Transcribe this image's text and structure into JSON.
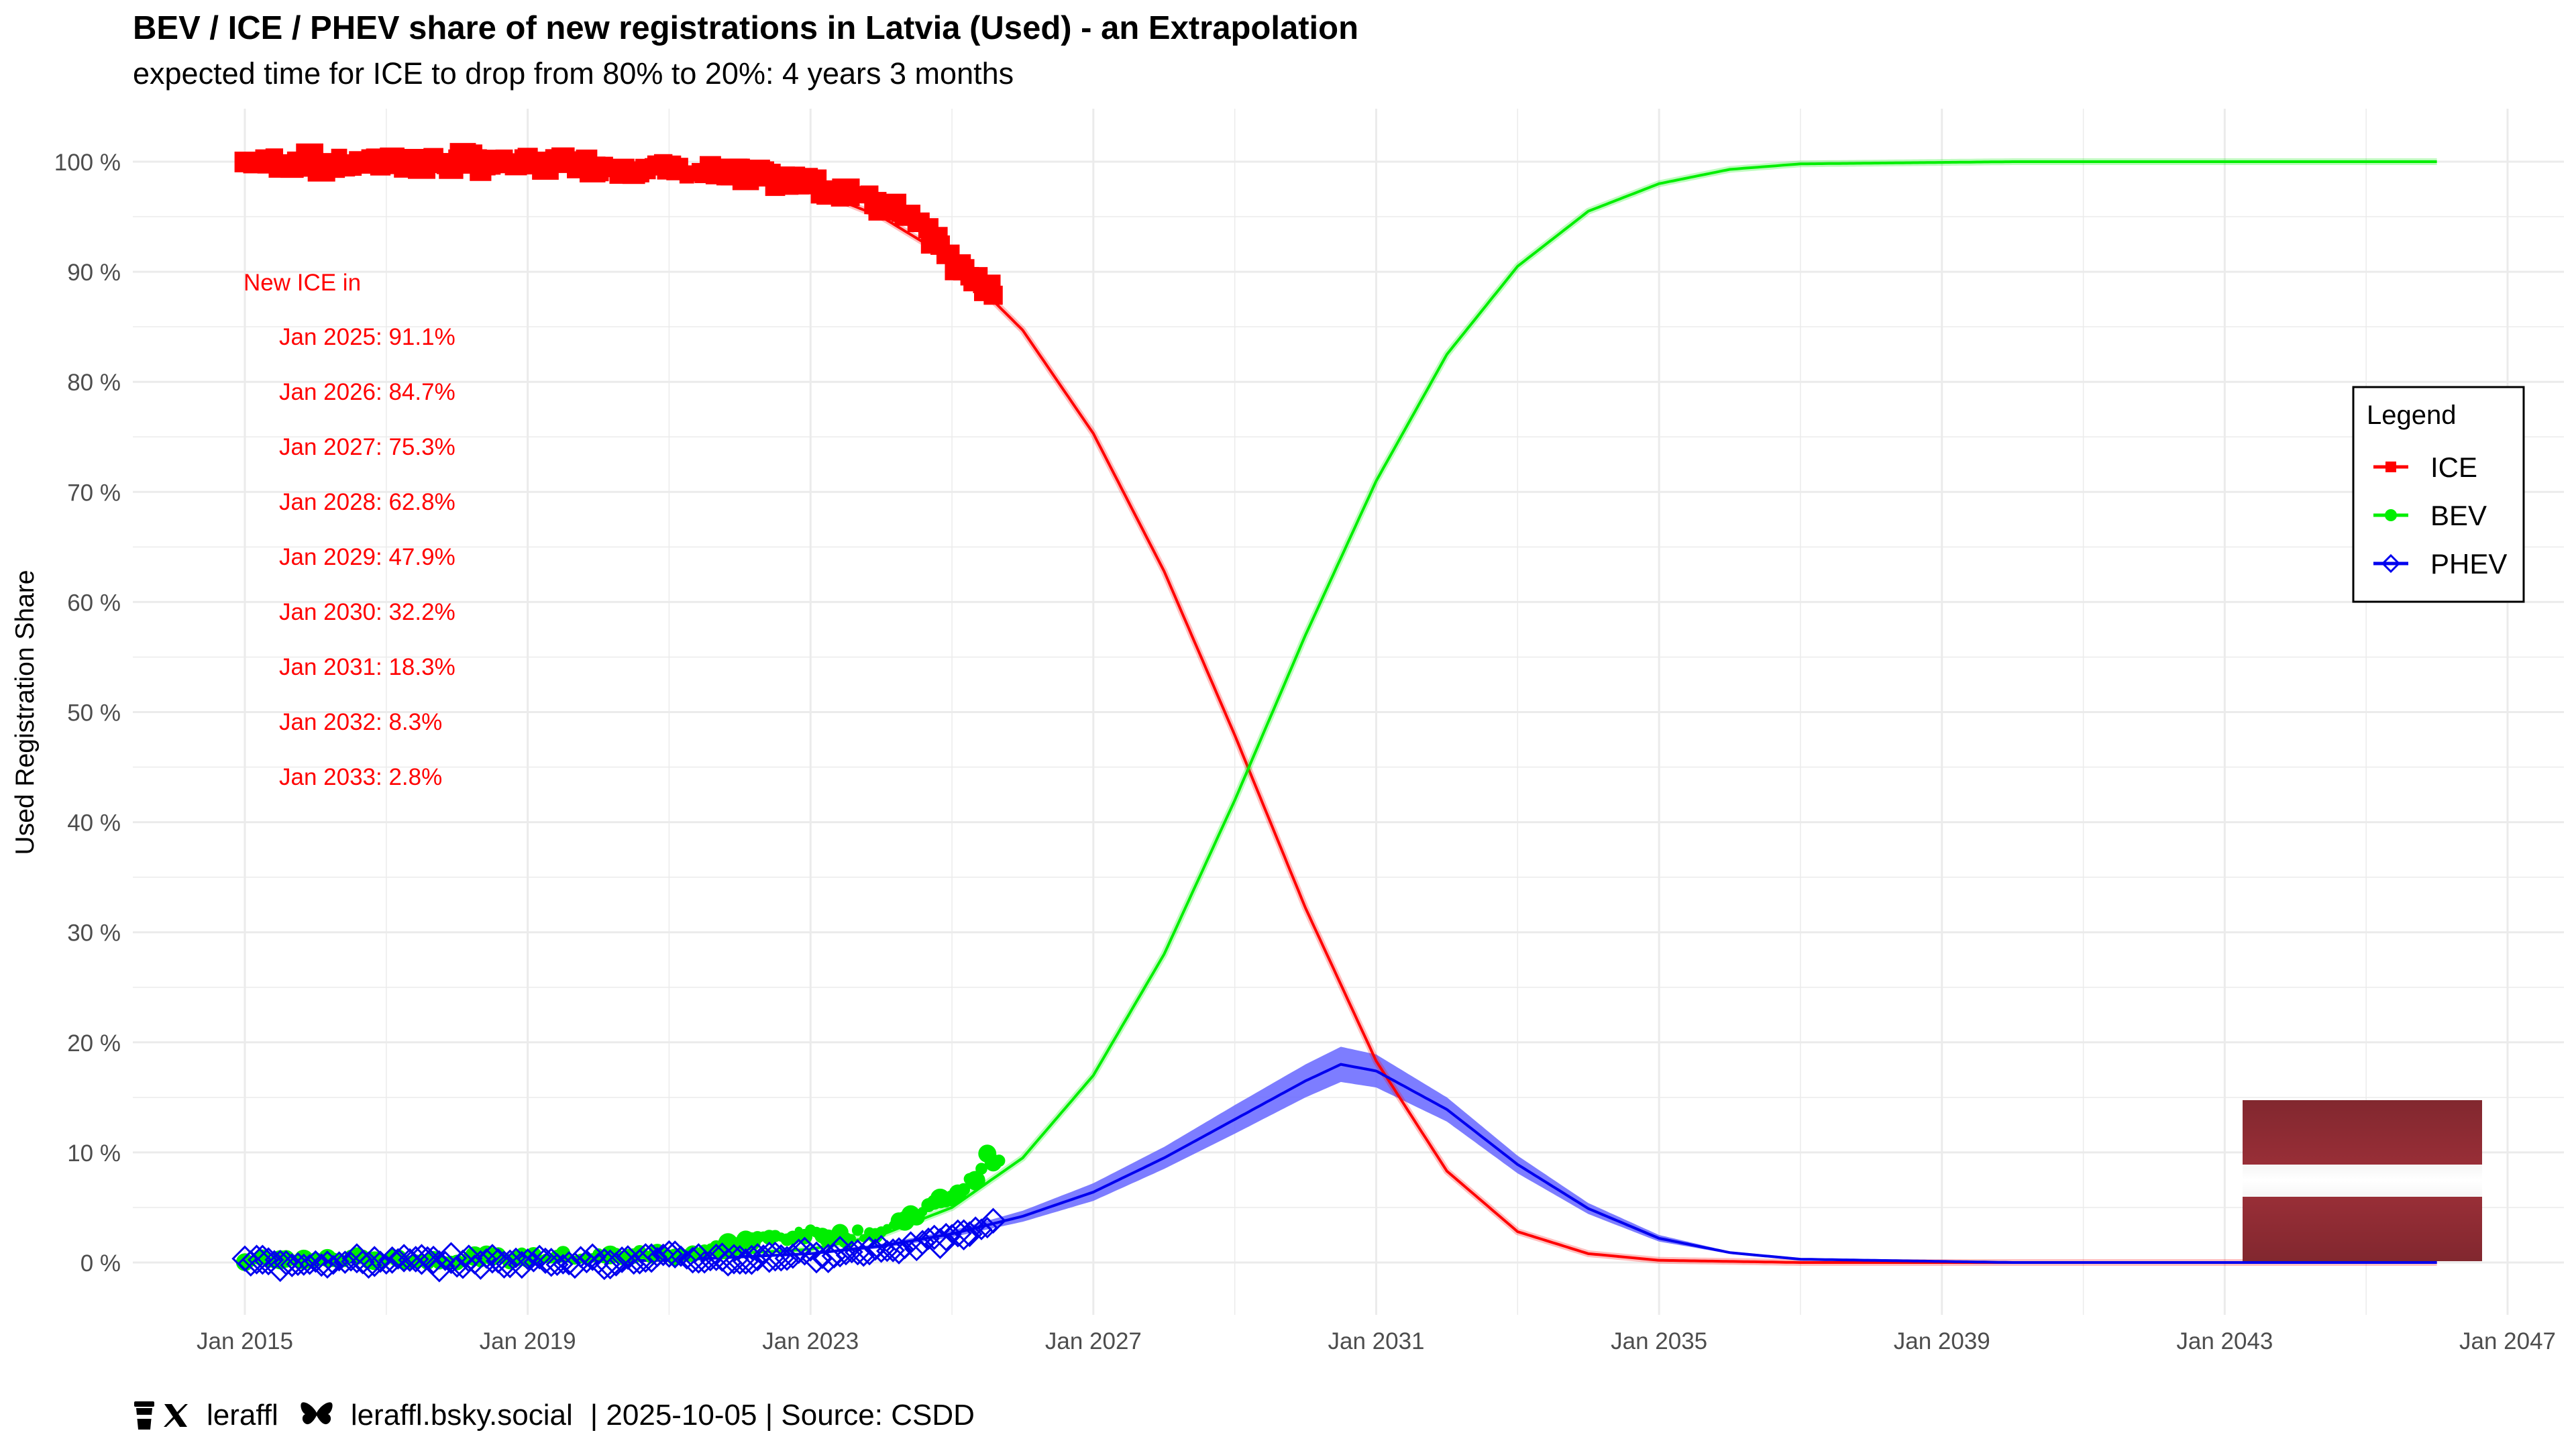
{
  "chart_data": {
    "type": "line",
    "title": "BEV / ICE / PHEV share of new registrations in Latvia (Used) - an Extrapolation",
    "subtitle": "expected time for ICE to drop from 80% to 20%: 4 years 3 months",
    "xlabel": "",
    "ylabel": "Used Registration Share",
    "x_ticks": [
      "Jan 2015",
      "Jan 2019",
      "Jan 2023",
      "Jan 2027",
      "Jan 2031",
      "Jan 2035",
      "Jan 2039",
      "Jan 2043",
      "Jan 2047"
    ],
    "y_ticks": [
      "0 %",
      "10 %",
      "20 %",
      "30 %",
      "40 %",
      "50 %",
      "60 %",
      "70 %",
      "80 %",
      "90 %",
      "100 %"
    ],
    "xlim": [
      2014.5,
      2047.2
    ],
    "ylim": [
      -5,
      105
    ],
    "grid": true,
    "legend": {
      "title": "Legend",
      "position": "right",
      "entries": [
        "ICE",
        "BEV",
        "PHEV"
      ]
    },
    "colors": {
      "ICE": "#ff0000",
      "BEV": "#00ee00",
      "PHEV": "#0000ee",
      "PHEV_band": "#6666ff",
      "grid": "#ebebeb",
      "axis_text": "#4d4d4d"
    },
    "series": [
      {
        "name": "ICE",
        "kind": "extrapolation",
        "x": [
          2015.0,
          2017.0,
          2019.0,
          2021.0,
          2023.0,
          2024.0,
          2025.0,
          2026.0,
          2027.0,
          2028.0,
          2029.0,
          2030.0,
          2031.0,
          2032.0,
          2033.0,
          2034.0,
          2035.0,
          2037.0,
          2040.0,
          2046.0
        ],
        "values": [
          100,
          99.9,
          99.7,
          99.3,
          97.5,
          95.0,
          91.1,
          84.7,
          75.3,
          62.8,
          47.9,
          32.2,
          18.3,
          8.3,
          2.8,
          0.8,
          0.2,
          0.0,
          0.0,
          0.0
        ],
        "observed": {
          "x": [
            2015.0,
            2015.5,
            2016.0,
            2016.5,
            2017.0,
            2017.5,
            2018.0,
            2018.5,
            2019.0,
            2019.5,
            2020.0,
            2020.5,
            2021.0,
            2021.5,
            2022.0,
            2022.5,
            2023.0,
            2023.5,
            2024.0,
            2024.5,
            2024.8,
            2025.0,
            2025.3,
            2025.6
          ],
          "values": [
            99.9,
            100.1,
            99.8,
            99.9,
            100.0,
            99.9,
            100.0,
            99.7,
            99.9,
            99.8,
            99.7,
            99.5,
            99.3,
            99.1,
            98.8,
            98.3,
            97.9,
            97.2,
            96.2,
            95.0,
            93.0,
            91.5,
            89.6,
            87.2
          ]
        }
      },
      {
        "name": "BEV",
        "kind": "extrapolation",
        "x": [
          2015.0,
          2017.0,
          2019.0,
          2021.0,
          2023.0,
          2024.0,
          2025.0,
          2026.0,
          2027.0,
          2028.0,
          2029.0,
          2030.0,
          2031.0,
          2032.0,
          2033.0,
          2034.0,
          2035.0,
          2036.0,
          2037.0,
          2040.0,
          2046.0
        ],
        "values": [
          0.0,
          0.05,
          0.2,
          0.5,
          1.2,
          2.5,
          5.0,
          9.5,
          17.0,
          28.0,
          42.0,
          57.0,
          71.0,
          82.5,
          90.5,
          95.5,
          98.0,
          99.3,
          99.8,
          100.0,
          100.0
        ],
        "observed": {
          "x": [
            2015.0,
            2016.0,
            2017.0,
            2018.0,
            2019.0,
            2020.0,
            2021.0,
            2021.5,
            2022.0,
            2022.5,
            2023.0,
            2023.5,
            2024.0,
            2024.5,
            2025.0,
            2025.3,
            2025.5,
            2025.7
          ],
          "values": [
            0.1,
            0.2,
            0.3,
            0.2,
            0.5,
            0.5,
            0.8,
            1.0,
            1.8,
            2.3,
            2.6,
            2.4,
            2.8,
            4.5,
            6.0,
            7.5,
            9.5,
            9.0
          ]
        }
      },
      {
        "name": "PHEV",
        "kind": "extrapolation",
        "x": [
          2015.0,
          2017.0,
          2019.0,
          2021.0,
          2023.0,
          2024.0,
          2025.0,
          2026.0,
          2027.0,
          2028.0,
          2029.0,
          2030.0,
          2030.5,
          2031.0,
          2032.0,
          2033.0,
          2034.0,
          2035.0,
          2036.0,
          2037.0,
          2040.0,
          2046.0
        ],
        "values": [
          0.0,
          0.05,
          0.1,
          0.2,
          0.8,
          1.5,
          2.6,
          4.2,
          6.4,
          9.5,
          13.0,
          16.5,
          18.0,
          17.4,
          13.9,
          8.9,
          4.9,
          2.2,
          0.9,
          0.3,
          0.0,
          0.0
        ],
        "band_halfwidth": [
          0.0,
          0.0,
          0.0,
          0.0,
          0.1,
          0.2,
          0.3,
          0.5,
          0.8,
          1.0,
          1.3,
          1.5,
          1.6,
          1.5,
          1.1,
          0.8,
          0.5,
          0.3,
          0.1,
          0.0,
          0.0,
          0.0
        ],
        "observed": {
          "x": [
            2015.0,
            2015.5,
            2016.0,
            2016.5,
            2017.0,
            2017.5,
            2018.0,
            2018.5,
            2019.0,
            2019.5,
            2020.0,
            2020.5,
            2021.0,
            2021.5,
            2022.0,
            2022.5,
            2023.0,
            2023.5,
            2024.0,
            2024.5,
            2025.0,
            2025.3,
            2025.6
          ],
          "values": [
            0.1,
            0.0,
            0.1,
            0.0,
            0.1,
            0.1,
            0.0,
            0.1,
            0.2,
            0.1,
            0.2,
            0.1,
            0.4,
            0.3,
            0.3,
            0.6,
            0.7,
            0.8,
            1.2,
            1.5,
            2.3,
            2.9,
            3.5
          ]
        }
      }
    ],
    "annotations": {
      "header": "New ICE in",
      "lines": [
        "Jan 2025: 91.1%",
        "Jan 2026: 84.7%",
        "Jan 2027: 75.3%",
        "Jan 2028: 62.8%",
        "Jan 2029: 47.9%",
        "Jan 2030: 32.2%",
        "Jan 2031: 18.3%",
        "Jan 2032: 8.3%",
        "Jan 2033: 2.8%"
      ]
    },
    "flag": {
      "country": "Latvia",
      "colors": [
        "#9e3039",
        "#ffffff"
      ]
    },
    "caption": {
      "handle_x": "leraffl",
      "handle_bsky": "leraffl.bsky.social",
      "meta": "| 2025-10-05 | Source: CSDD"
    }
  }
}
